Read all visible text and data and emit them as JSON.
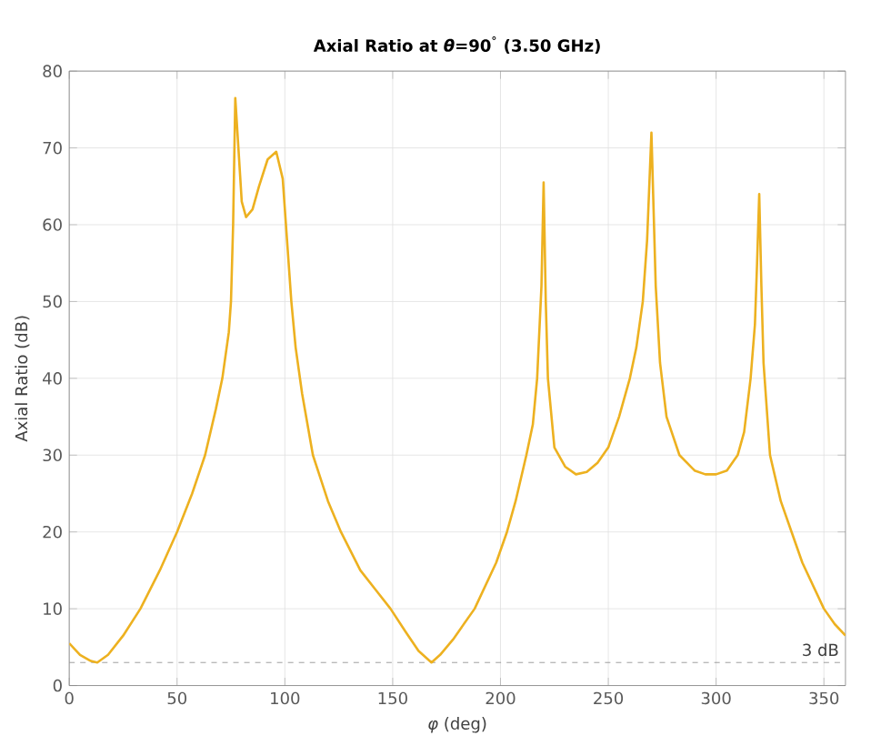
{
  "chart_data": {
    "type": "line",
    "title": "Axial Ratio at *θ*=90$^{°}$ (3.50 GHz)",
    "xlabel": "*φ* (deg)",
    "ylabel": "Axial Ratio (dB)",
    "xlim": [
      0,
      360
    ],
    "ylim": [
      0,
      80
    ],
    "xticks": [
      0,
      50,
      100,
      150,
      200,
      250,
      300,
      350
    ],
    "yticks": [
      0,
      10,
      20,
      30,
      40,
      50,
      60,
      70,
      80
    ],
    "grid": true,
    "ref_lines": [
      {
        "axis": "y",
        "value": 3,
        "label": "3 dB",
        "color": "#888888",
        "line_style": "dashed"
      }
    ],
    "series": [
      {
        "color": "#edb120",
        "x": [
          0,
          5,
          10,
          13,
          18,
          25,
          33,
          42,
          50,
          57,
          63,
          68,
          71,
          74,
          75,
          76,
          77,
          78,
          80,
          82,
          85,
          88,
          92,
          96,
          99,
          101,
          103,
          105,
          108,
          113,
          120,
          126,
          135,
          142,
          149,
          156,
          162,
          168,
          172,
          178,
          183,
          188,
          193,
          198,
          203,
          207,
          212,
          215,
          217,
          219,
          220,
          221,
          222,
          225,
          230,
          235,
          240,
          245,
          250,
          255,
          260,
          263,
          266,
          268,
          269,
          270,
          271,
          272,
          274,
          277,
          283,
          290,
          295,
          300,
          305,
          310,
          313,
          316,
          318,
          319,
          320,
          321,
          322,
          325,
          330,
          335,
          340,
          345,
          350,
          355,
          360
        ],
        "values": [
          5.5,
          4,
          3.2,
          3,
          4,
          6.5,
          10,
          15,
          20,
          25,
          30,
          36,
          40,
          46,
          50,
          60,
          76.5,
          72,
          63,
          61,
          62,
          65,
          68.5,
          69.5,
          66,
          58,
          50,
          44,
          38,
          30,
          24,
          20,
          15,
          12.5,
          10,
          7,
          4.5,
          3,
          4,
          6,
          8,
          10,
          13,
          16,
          20,
          24,
          30,
          34,
          40,
          52,
          65.5,
          50,
          40,
          31,
          28.5,
          27.5,
          27.8,
          29,
          31,
          35,
          40,
          44,
          50,
          58,
          65,
          72,
          62,
          52,
          42,
          35,
          30,
          28,
          27.5,
          27.5,
          28,
          30,
          33,
          40,
          47,
          55,
          64,
          52,
          42,
          30,
          24,
          20,
          16,
          13,
          10,
          8,
          6.5
        ]
      }
    ]
  }
}
